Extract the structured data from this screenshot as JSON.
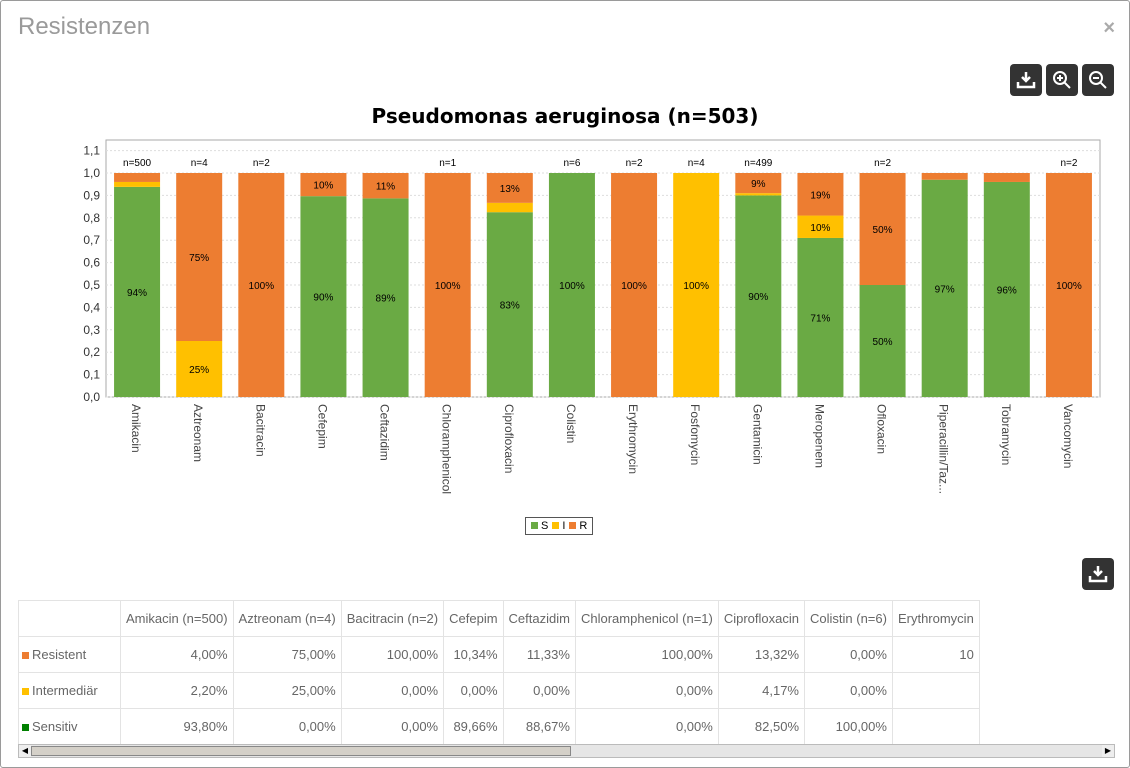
{
  "window": {
    "title": "Resistenzen",
    "close": "×"
  },
  "toolbar": {
    "download": "download-icon",
    "zoom_in": "zoom-in-icon",
    "zoom_out": "zoom-out-icon"
  },
  "colors": {
    "S": "#6aaa44",
    "I": "#ffc000",
    "R": "#ed7d31"
  },
  "chart_data": {
    "type": "bar",
    "stacked": true,
    "title": "Pseudomonas aeruginosa (n=503)",
    "ylim": [
      0,
      1.1
    ],
    "yticks": [
      "0,0",
      "0,1",
      "0,2",
      "0,3",
      "0,4",
      "0,5",
      "0,6",
      "0,7",
      "0,8",
      "0,9",
      "1,0",
      "1,1"
    ],
    "categories": [
      "Amikacin",
      "Aztreonam",
      "Bacitracin",
      "Cefepim",
      "Ceftazidim",
      "Chloramphenicol",
      "Ciprofloxacin",
      "Colistin",
      "Erythromycin",
      "Fosfomycin",
      "Gentamicin",
      "Meropenem",
      "Ofloxacin",
      "Piperacillin/Taz...",
      "Tobramycin",
      "Vancomycin"
    ],
    "n_labels": [
      "n=500",
      "n=4",
      "n=2",
      "",
      "",
      "n=1",
      "",
      "n=6",
      "n=2",
      "n=4",
      "n=499",
      "",
      "n=2",
      "",
      "",
      "n=2"
    ],
    "series": [
      {
        "name": "S",
        "values": [
          0.938,
          0,
          0,
          0.8966,
          0.8867,
          0,
          0.825,
          1,
          0,
          0,
          0.9,
          0.71,
          0.5,
          0.97,
          0.96,
          0
        ]
      },
      {
        "name": "I",
        "values": [
          0.022,
          0.25,
          0,
          0,
          0,
          0,
          0.0417,
          0,
          0,
          1,
          0.01,
          0.1,
          0,
          0,
          0,
          0
        ]
      },
      {
        "name": "R",
        "values": [
          0.04,
          0.75,
          1,
          0.1034,
          0.1133,
          1,
          0.1332,
          0,
          1,
          0,
          0.09,
          0.19,
          0.5,
          0.03,
          0.04,
          1
        ]
      }
    ],
    "legend": [
      "S",
      "I",
      "R"
    ],
    "legend_position": "bottom"
  },
  "table": {
    "headers": [
      "",
      "Amikacin (n=500)",
      "Aztreonam (n=4)",
      "Bacitracin (n=2)",
      "Cefepim",
      "Ceftazidim",
      "Chloramphenicol (n=1)",
      "Ciprofloxacin",
      "Colistin (n=6)",
      "Erythromycin"
    ],
    "rows": [
      {
        "label": "Resistent",
        "color": "#ed7d31",
        "values": [
          "4,00%",
          "75,00%",
          "100,00%",
          "10,34%",
          "11,33%",
          "100,00%",
          "13,32%",
          "0,00%",
          "10"
        ]
      },
      {
        "label": "Intermediär",
        "color": "#ffc000",
        "values": [
          "2,20%",
          "25,00%",
          "0,00%",
          "0,00%",
          "0,00%",
          "0,00%",
          "4,17%",
          "0,00%",
          ""
        ]
      },
      {
        "label": "Sensitiv",
        "color": "#008000",
        "values": [
          "93,80%",
          "0,00%",
          "0,00%",
          "89,66%",
          "88,67%",
          "0,00%",
          "82,50%",
          "100,00%",
          ""
        ]
      }
    ]
  }
}
